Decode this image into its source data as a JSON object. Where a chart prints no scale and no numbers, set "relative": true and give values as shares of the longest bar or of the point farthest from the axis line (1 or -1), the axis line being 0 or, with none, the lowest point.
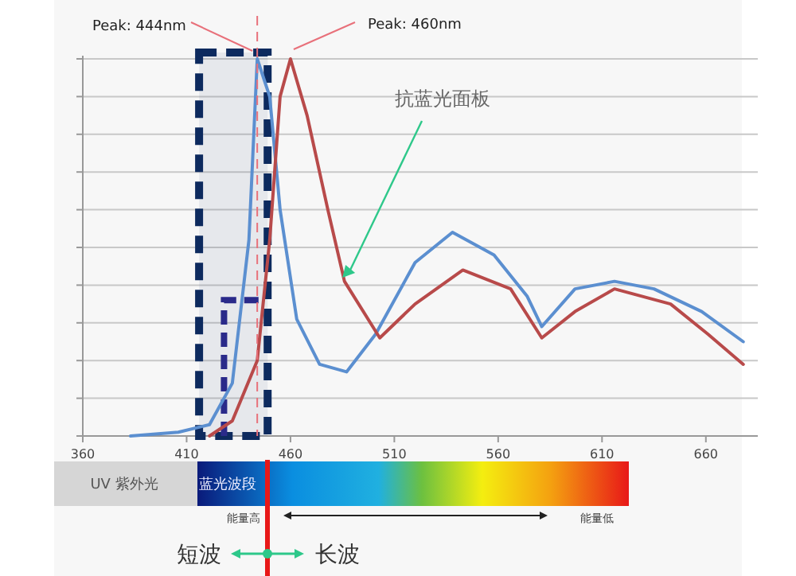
{
  "chart_data": {
    "type": "line",
    "relative": true,
    "xlim": [
      360,
      685
    ],
    "xticks": [
      360,
      410,
      460,
      510,
      560,
      610,
      660
    ],
    "grid": "y",
    "marker": "none",
    "series": [
      {
        "color": "#5b8fd0",
        "x": [
          383,
          406,
          421,
          432,
          440,
          444,
          450,
          455,
          463,
          474,
          487,
          501,
          520,
          538,
          558,
          574,
          581,
          597,
          616,
          635,
          658,
          678
        ],
        "values": [
          0,
          0.01,
          0.03,
          0.14,
          0.52,
          1,
          0.9,
          0.6,
          0.31,
          0.19,
          0.17,
          0.27,
          0.46,
          0.54,
          0.48,
          0.37,
          0.29,
          0.39,
          0.41,
          0.39,
          0.33,
          0.25
        ]
      },
      {
        "color": "#b84a4a",
        "x": [
          421,
          432,
          444,
          450,
          455,
          460,
          468,
          478,
          486,
          503,
          520,
          543,
          566,
          581,
          597,
          616,
          643,
          661,
          678
        ],
        "values": [
          0,
          0.04,
          0.2,
          0.52,
          0.9,
          1,
          0.85,
          0.6,
          0.41,
          0.26,
          0.35,
          0.44,
          0.39,
          0.26,
          0.33,
          0.39,
          0.35,
          0.27,
          0.19
        ]
      }
    ],
    "ref_lines": [
      {
        "axis": "x",
        "value": 444,
        "color": "#e8707a",
        "line_style": "dashed"
      }
    ],
    "bands": [
      {
        "axis": "x",
        "from": 416,
        "to": 449,
        "color": "#0d2a5e"
      }
    ],
    "annotations": [
      {
        "text": "Peak: 444nm",
        "x": 444,
        "y": 1
      },
      {
        "text": "Peak: 460nm",
        "x": 460,
        "y": 1
      },
      {
        "text": "抗蓝光面板",
        "x": 485,
        "y": 0.42
      },
      "UV 紫外光",
      "蓝光波段",
      "能量高",
      "能量低",
      "短波",
      "长波"
    ]
  }
}
